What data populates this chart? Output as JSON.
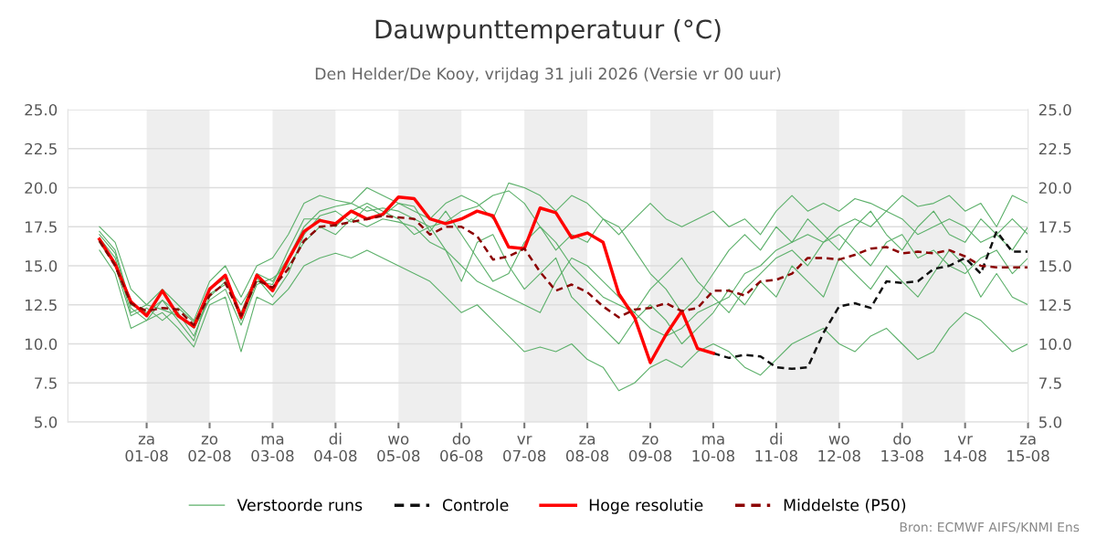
{
  "chart_data": {
    "type": "line",
    "title": "Dauwpunttemperatuur (°C)",
    "subtitle": "Den Helder/De Kooy, vrijdag 31 juli 2026 (Versie vr 00 uur)",
    "x": [
      "2026-07-31T06:00",
      "2026-07-31T12:00",
      "2026-07-31T18:00",
      "2026-08-01T00:00",
      "2026-08-01T06:00",
      "2026-08-01T12:00",
      "2026-08-01T18:00",
      "2026-08-02T00:00",
      "2026-08-02T06:00",
      "2026-08-02T12:00",
      "2026-08-02T18:00",
      "2026-08-03T00:00",
      "2026-08-03T06:00",
      "2026-08-03T12:00",
      "2026-08-03T18:00",
      "2026-08-04T00:00",
      "2026-08-04T06:00",
      "2026-08-04T12:00",
      "2026-08-04T18:00",
      "2026-08-05T00:00",
      "2026-08-05T06:00",
      "2026-08-05T12:00",
      "2026-08-05T18:00",
      "2026-08-06T00:00",
      "2026-08-06T06:00",
      "2026-08-06T12:00",
      "2026-08-06T18:00",
      "2026-08-07T00:00",
      "2026-08-07T06:00",
      "2026-08-07T12:00",
      "2026-08-07T18:00",
      "2026-08-08T00:00",
      "2026-08-08T06:00",
      "2026-08-08T12:00",
      "2026-08-08T18:00",
      "2026-08-09T00:00",
      "2026-08-09T06:00",
      "2026-08-09T12:00",
      "2026-08-09T18:00",
      "2026-08-10T00:00",
      "2026-08-10T06:00",
      "2026-08-10T12:00",
      "2026-08-10T18:00",
      "2026-08-11T00:00",
      "2026-08-11T06:00",
      "2026-08-11T12:00",
      "2026-08-11T18:00",
      "2026-08-12T00:00",
      "2026-08-12T06:00",
      "2026-08-12T12:00",
      "2026-08-12T18:00",
      "2026-08-13T00:00",
      "2026-08-13T06:00",
      "2026-08-13T12:00",
      "2026-08-13T18:00",
      "2026-08-14T00:00",
      "2026-08-14T06:00",
      "2026-08-14T12:00",
      "2026-08-14T18:00",
      "2026-08-15T00:00"
    ],
    "series": [
      {
        "name": "Verstoorde runs",
        "color": "#5cb06a",
        "line_style": "solid",
        "values": [
          17.2,
          16.0,
          12.5,
          12.0,
          12.8,
          12.0,
          10.5,
          13.0,
          14.0,
          12.0,
          14.5,
          14.0,
          15.5,
          17.5,
          18.5,
          18.8,
          19.0,
          18.5,
          18.7,
          18.5,
          18.0,
          17.5,
          17.8,
          18.5,
          18.8,
          19.5,
          19.8,
          19.0,
          17.5,
          16.5,
          15.0,
          14.0,
          13.0,
          12.5,
          12.0,
          11.0,
          10.5,
          11.0,
          12.0,
          12.5,
          13.0,
          14.5,
          15.0,
          16.0,
          16.5,
          17.0,
          16.5,
          17.5,
          18.0,
          17.5,
          18.5,
          18.0,
          17.0,
          17.5,
          18.0,
          17.5,
          16.5,
          17.0,
          18.0,
          17.0
        ]
      },
      {
        "color": "#5cb06a",
        "line_style": "solid",
        "values": [
          16.0,
          14.5,
          11.0,
          11.5,
          12.0,
          11.0,
          9.8,
          12.5,
          13.0,
          9.5,
          13.0,
          12.5,
          13.5,
          15.0,
          15.5,
          15.8,
          15.5,
          16.0,
          15.5,
          15.0,
          14.5,
          14.0,
          13.0,
          12.0,
          12.5,
          11.5,
          10.5,
          9.5,
          9.8,
          9.5,
          10.0,
          9.0,
          8.5,
          7.0,
          7.5,
          8.5,
          9.0,
          8.5,
          9.5,
          10.0,
          9.5,
          8.5,
          8.0,
          9.0,
          10.0,
          10.5,
          11.0,
          10.0,
          9.5,
          10.5,
          11.0,
          10.0,
          9.0,
          9.5,
          11.0,
          12.0,
          11.5,
          10.5,
          9.5,
          10.0
        ]
      },
      {
        "color": "#5cb06a",
        "line_style": "solid",
        "values": [
          17.5,
          16.5,
          13.5,
          12.5,
          13.5,
          12.5,
          11.5,
          14.0,
          15.0,
          13.0,
          15.0,
          15.5,
          17.0,
          19.0,
          19.5,
          19.2,
          19.0,
          20.0,
          19.5,
          19.0,
          18.5,
          18.0,
          19.0,
          19.5,
          19.0,
          18.0,
          20.3,
          20.0,
          19.5,
          18.5,
          19.5,
          19.0,
          18.0,
          17.0,
          18.0,
          19.0,
          18.0,
          17.5,
          18.0,
          18.5,
          17.5,
          18.0,
          17.0,
          18.5,
          19.5,
          18.5,
          19.0,
          18.5,
          19.3,
          19.0,
          18.5,
          19.5,
          18.8,
          19.0,
          19.5,
          18.5,
          19.0,
          17.5,
          19.5,
          19.0
        ]
      },
      {
        "color": "#5cb06a",
        "line_style": "solid",
        "values": [
          16.8,
          15.5,
          12.0,
          12.5,
          12.2,
          11.8,
          11.0,
          12.8,
          13.5,
          11.2,
          13.8,
          14.2,
          15.0,
          16.5,
          17.5,
          17.0,
          18.0,
          17.5,
          18.0,
          17.8,
          17.5,
          16.5,
          16.0,
          15.0,
          14.0,
          13.5,
          13.0,
          12.5,
          12.0,
          14.0,
          15.5,
          15.0,
          14.0,
          13.0,
          12.0,
          13.5,
          14.5,
          15.5,
          14.0,
          13.0,
          12.0,
          13.5,
          14.5,
          15.5,
          16.0,
          15.0,
          16.5,
          17.0,
          16.0,
          15.0,
          16.5,
          17.0,
          15.5,
          16.0,
          15.0,
          14.5,
          15.5,
          16.0,
          14.5,
          15.5
        ]
      },
      {
        "color": "#5cb06a",
        "line_style": "solid",
        "values": [
          17.0,
          15.8,
          12.3,
          11.5,
          12.8,
          11.5,
          10.2,
          13.5,
          14.2,
          11.5,
          14.0,
          13.8,
          16.0,
          18.0,
          18.0,
          17.5,
          18.5,
          19.0,
          18.5,
          18.0,
          17.0,
          17.5,
          16.0,
          14.0,
          16.5,
          17.0,
          15.0,
          13.5,
          14.5,
          15.5,
          13.0,
          12.0,
          11.0,
          10.0,
          11.5,
          12.5,
          11.5,
          10.0,
          11.0,
          12.0,
          13.5,
          12.5,
          14.0,
          13.0,
          15.0,
          14.0,
          13.0,
          15.5,
          14.5,
          13.5,
          15.0,
          14.0,
          13.0,
          14.5,
          16.0,
          15.0,
          13.0,
          14.5,
          13.0,
          12.5
        ]
      },
      {
        "color": "#5cb06a",
        "line_style": "solid",
        "values": [
          16.5,
          15.0,
          11.8,
          12.3,
          11.5,
          12.3,
          11.4,
          13.2,
          13.8,
          12.5,
          14.2,
          13.0,
          14.5,
          17.0,
          18.2,
          18.5,
          17.8,
          18.8,
          18.2,
          19.0,
          18.8,
          17.2,
          18.5,
          17.0,
          15.5,
          14.0,
          14.5,
          16.5,
          17.5,
          16.0,
          17.0,
          16.5,
          18.0,
          17.5,
          16.0,
          14.5,
          13.5,
          12.0,
          13.0,
          14.5,
          16.0,
          17.0,
          16.0,
          17.5,
          16.5,
          18.0,
          17.0,
          16.0,
          17.5,
          18.5,
          17.0,
          16.0,
          17.5,
          18.5,
          17.0,
          16.5,
          18.0,
          17.0,
          16.0,
          17.5
        ]
      },
      {
        "name": "Controle",
        "color": "#111111",
        "line_style": "dashed",
        "values": [
          null,
          null,
          null,
          null,
          null,
          null,
          null,
          null,
          null,
          null,
          null,
          null,
          null,
          null,
          null,
          null,
          null,
          null,
          null,
          null,
          null,
          null,
          null,
          null,
          null,
          null,
          null,
          null,
          null,
          null,
          null,
          null,
          null,
          null,
          null,
          null,
          null,
          null,
          null,
          9.4,
          9.1,
          9.3,
          9.2,
          8.5,
          8.4,
          8.5,
          10.7,
          12.4,
          12.6,
          12.3,
          14.0,
          13.9,
          14.0,
          14.8,
          15.0,
          15.5,
          14.5,
          17.2,
          15.9,
          15.9
        ]
      },
      {
        "name": "Hoge resolutie",
        "color": "#ff0000",
        "line_style": "solid",
        "values": [
          16.7,
          15.1,
          12.7,
          11.8,
          13.4,
          11.8,
          11.1,
          13.5,
          14.4,
          11.7,
          14.4,
          13.4,
          15.4,
          17.2,
          17.9,
          17.7,
          18.5,
          18.0,
          18.3,
          19.4,
          19.3,
          18.0,
          17.7,
          18.0,
          18.5,
          18.2,
          16.2,
          16.1,
          18.7,
          18.4,
          16.8,
          17.1,
          16.5,
          13.2,
          11.7,
          8.8,
          10.6,
          12.1,
          9.7,
          9.4,
          null,
          null,
          null,
          null,
          null,
          null,
          null,
          null,
          null,
          null,
          null,
          null,
          null,
          null,
          null,
          null,
          null,
          null,
          null,
          null
        ]
      },
      {
        "name": "Middelste (P50)",
        "color": "#8b0000",
        "line_style": "dashed",
        "values": [
          16.6,
          15.0,
          12.6,
          12.1,
          12.3,
          12.2,
          11.2,
          13.1,
          13.9,
          11.8,
          14.1,
          13.6,
          14.8,
          16.6,
          17.5,
          17.6,
          17.8,
          18.0,
          18.2,
          18.1,
          18.0,
          17.0,
          17.5,
          17.5,
          16.9,
          15.4,
          15.6,
          16.1,
          14.6,
          13.4,
          13.8,
          13.3,
          12.4,
          11.7,
          12.2,
          12.3,
          12.6,
          12.1,
          12.3,
          13.4,
          13.4,
          13.1,
          14.0,
          14.1,
          14.5,
          15.5,
          15.5,
          15.4,
          15.7,
          16.1,
          16.2,
          15.8,
          15.9,
          15.8,
          16.0,
          15.6,
          15.0,
          14.9,
          14.9,
          14.9
        ]
      }
    ],
    "xlim": [
      "2026-07-30T18:00",
      "2026-08-15"
    ],
    "xticks": [
      {
        "value": "2026-08-01",
        "label": "za\n01-08"
      },
      {
        "value": "2026-08-02",
        "label": "zo\n02-08"
      },
      {
        "value": "2026-08-03",
        "label": "ma\n03-08"
      },
      {
        "value": "2026-08-04",
        "label": "di\n04-08"
      },
      {
        "value": "2026-08-05",
        "label": "wo\n05-08"
      },
      {
        "value": "2026-08-06",
        "label": "do\n06-08"
      },
      {
        "value": "2026-08-07",
        "label": "vr\n07-08"
      },
      {
        "value": "2026-08-08",
        "label": "za\n08-08"
      },
      {
        "value": "2026-08-09",
        "label": "zo\n09-08"
      },
      {
        "value": "2026-08-10",
        "label": "ma\n10-08"
      },
      {
        "value": "2026-08-11",
        "label": "di\n11-08"
      },
      {
        "value": "2026-08-12",
        "label": "wo\n12-08"
      },
      {
        "value": "2026-08-13",
        "label": "do\n13-08"
      },
      {
        "value": "2026-08-14",
        "label": "vr\n14-08"
      },
      {
        "value": "2026-08-15",
        "label": "za\n15-08"
      }
    ],
    "ylim": [
      5,
      25
    ],
    "yticks": [
      {
        "value": 5,
        "label": "5.0"
      },
      {
        "value": 7.5,
        "label": "7.5"
      },
      {
        "value": 10,
        "label": "10.0"
      },
      {
        "value": 12.5,
        "label": "12.5"
      },
      {
        "value": 15,
        "label": "15.0"
      },
      {
        "value": 17.5,
        "label": "17.5"
      },
      {
        "value": 20,
        "label": "20.0"
      },
      {
        "value": 22.5,
        "label": "22.5"
      },
      {
        "value": 25,
        "label": "25.0"
      }
    ],
    "y2lim": [
      5,
      25
    ],
    "y2ticks": [
      {
        "value": 5,
        "label": "5.0"
      },
      {
        "value": 7.5,
        "label": "7.5"
      },
      {
        "value": 10,
        "label": "10.0"
      },
      {
        "value": 12.5,
        "label": "12.5"
      },
      {
        "value": 15,
        "label": "15.0"
      },
      {
        "value": 17.5,
        "label": "17.5"
      },
      {
        "value": 20,
        "label": "20.0"
      },
      {
        "value": 22.5,
        "label": "22.5"
      },
      {
        "value": 25,
        "label": "25.0"
      }
    ],
    "bands": [
      {
        "axis": "x",
        "from": "2026-08-01",
        "to": "2026-08-02",
        "color": "#eeeeee"
      },
      {
        "axis": "x",
        "from": "2026-08-03",
        "to": "2026-08-04",
        "color": "#eeeeee"
      },
      {
        "axis": "x",
        "from": "2026-08-05",
        "to": "2026-08-06",
        "color": "#eeeeee"
      },
      {
        "axis": "x",
        "from": "2026-08-07",
        "to": "2026-08-08",
        "color": "#eeeeee"
      },
      {
        "axis": "x",
        "from": "2026-08-09",
        "to": "2026-08-10",
        "color": "#eeeeee"
      },
      {
        "axis": "x",
        "from": "2026-08-11",
        "to": "2026-08-12",
        "color": "#eeeeee"
      },
      {
        "axis": "x",
        "from": "2026-08-13",
        "to": "2026-08-14",
        "color": "#eeeeee"
      }
    ],
    "grid": "y",
    "legend": "bottom",
    "marker": "none",
    "annotations": [
      "Bron: ECMWF AIFS/KNMI Ens"
    ]
  }
}
